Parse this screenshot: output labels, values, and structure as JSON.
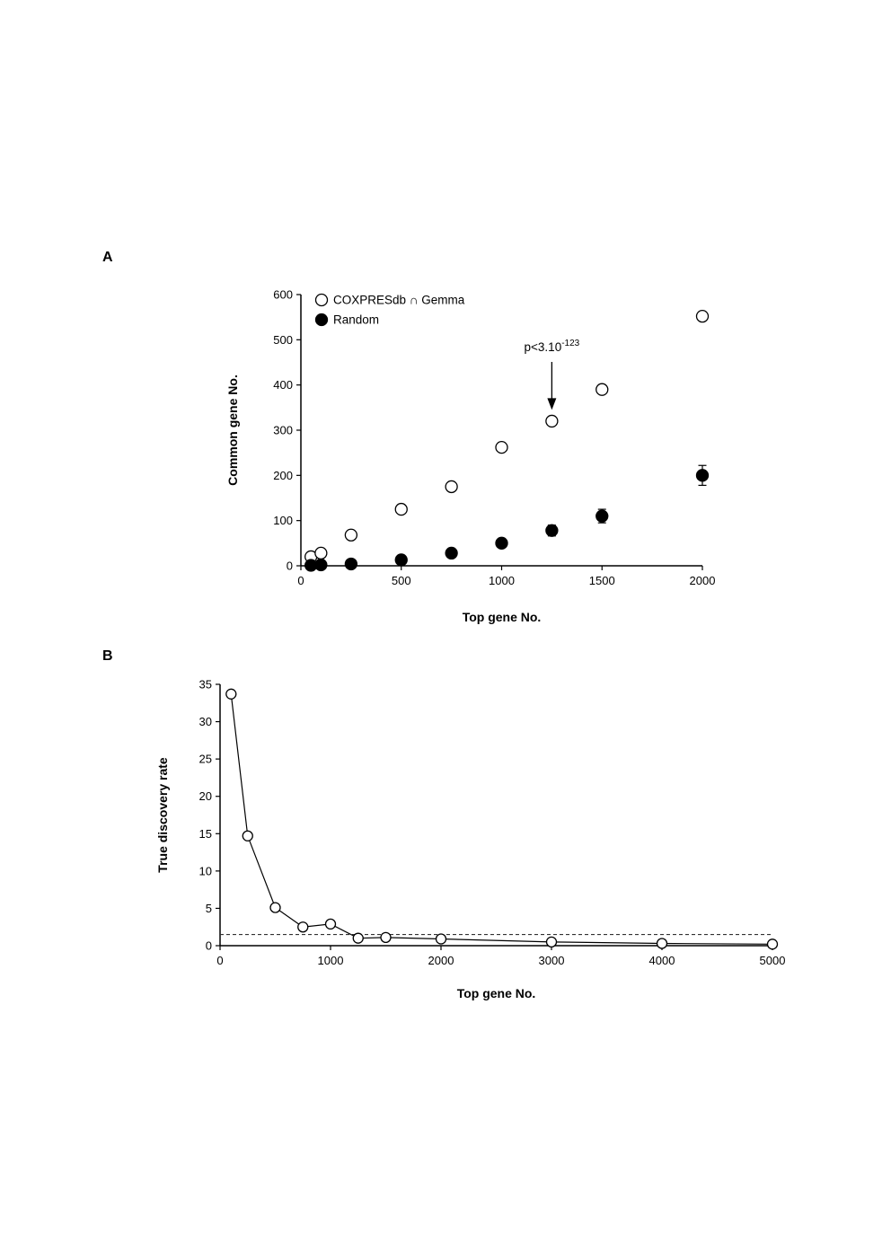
{
  "figure": {
    "background": "#ffffff",
    "ink_color": "#000000",
    "panels": [
      {
        "label": "A"
      },
      {
        "label": "B"
      }
    ]
  },
  "chart_data": [
    {
      "type": "scatter",
      "panel": "A",
      "title": "",
      "xlabel": "Top gene No.",
      "ylabel": "Common gene No.",
      "xlim": [
        0,
        2000
      ],
      "ylim": [
        0,
        600
      ],
      "xticks": [
        0,
        500,
        1000,
        1500,
        2000
      ],
      "yticks": [
        0,
        100,
        200,
        300,
        400,
        500,
        600
      ],
      "grid": false,
      "legend_position": "top-left",
      "annotation": {
        "x": 1250,
        "target_y": 320,
        "text": "p<3.10",
        "exponent": "-123"
      },
      "series": [
        {
          "name": "COXPRESdb ∩ Gemma",
          "marker": "open-circle",
          "x": [
            50,
            100,
            250,
            500,
            750,
            1000,
            1250,
            1500,
            2000
          ],
          "y": [
            20,
            28,
            68,
            125,
            175,
            262,
            320,
            390,
            552
          ]
        },
        {
          "name": "Random",
          "marker": "filled-circle",
          "x": [
            50,
            100,
            250,
            500,
            750,
            1000,
            1250,
            1500,
            2000
          ],
          "y": [
            1,
            2,
            4,
            13,
            28,
            50,
            78,
            110,
            200
          ],
          "yerr": [
            1,
            1,
            2,
            4,
            5,
            10,
            12,
            15,
            22
          ]
        }
      ]
    },
    {
      "type": "line",
      "panel": "B",
      "title": "",
      "xlabel": "Top gene No.",
      "ylabel": "True discovery rate",
      "xlim": [
        0,
        5000
      ],
      "ylim": [
        0,
        35
      ],
      "xticks": [
        0,
        1000,
        2000,
        3000,
        4000,
        5000
      ],
      "yticks": [
        0,
        5,
        10,
        15,
        20,
        25,
        30,
        35
      ],
      "grid": false,
      "reference_line": {
        "y": 1.5,
        "style": "dashed"
      },
      "series": [
        {
          "name": "True discovery rate",
          "marker": "open-circle",
          "x": [
            100,
            250,
            500,
            750,
            1000,
            1250,
            1500,
            2000,
            3000,
            4000,
            5000
          ],
          "y": [
            33.7,
            14.7,
            5.1,
            2.5,
            2.9,
            1.0,
            1.1,
            0.9,
            0.5,
            0.3,
            0.2
          ]
        }
      ]
    }
  ]
}
